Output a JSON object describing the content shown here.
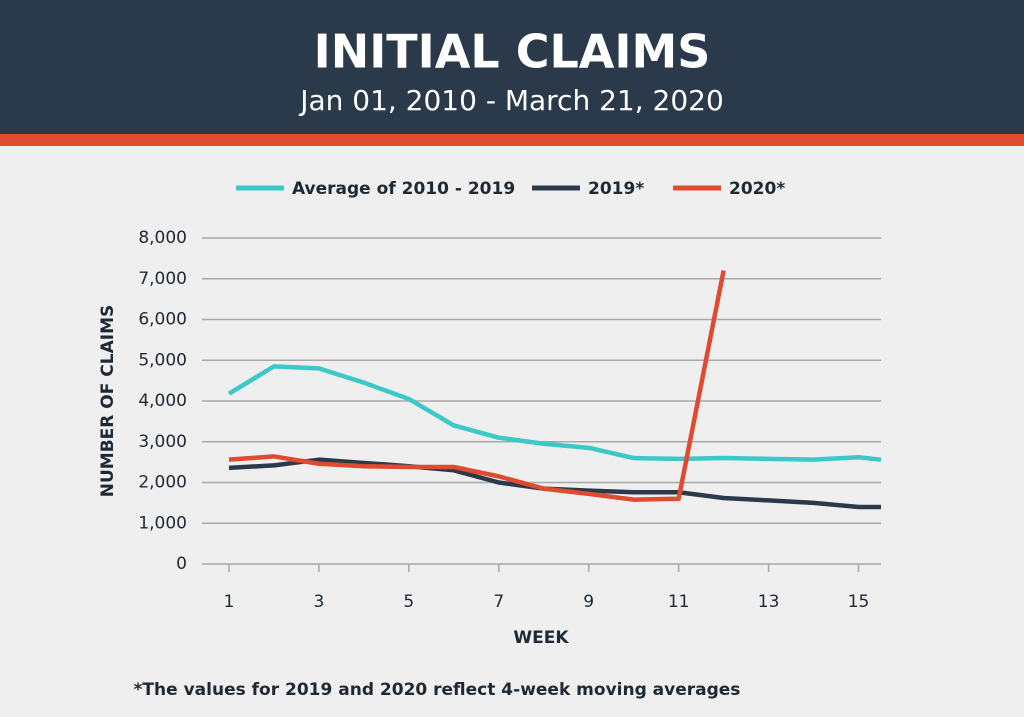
{
  "chart_data": {
    "type": "line",
    "title": "INITIAL CLAIMS",
    "subtitle": "Jan 01, 2010 - March 21, 2020",
    "x_label": "WEEK",
    "y_label": "NUMBER OF CLAIMS",
    "footnote": "*The values for 2019 and 2020 reflect 4-week moving averages",
    "x": [
      1,
      2,
      3,
      4,
      5,
      6,
      7,
      8,
      9,
      10,
      11,
      12,
      13,
      14,
      15,
      15.5
    ],
    "series": [
      {
        "name": "Average of 2010 - 2019",
        "color": "#3cc8c8",
        "values": [
          4180,
          4850,
          4800,
          4450,
          4050,
          3400,
          3100,
          2950,
          2850,
          2600,
          2580,
          2600,
          2580,
          2560,
          2620,
          2560
        ]
      },
      {
        "name": "2019*",
        "color": "#2b3a4a",
        "values": [
          2360,
          2420,
          2560,
          2480,
          2400,
          2300,
          2000,
          1850,
          1800,
          1760,
          1760,
          1620,
          1560,
          1500,
          1400,
          1400
        ]
      },
      {
        "name": "2020*",
        "color": "#e04a2f",
        "values": [
          2560,
          2640,
          2460,
          2400,
          2380,
          2380,
          2150,
          1850,
          1720,
          1580,
          1600,
          7200,
          null,
          null,
          null,
          null
        ]
      }
    ],
    "xlim": [
      0.4,
      15.5
    ],
    "xticks": [
      1,
      3,
      5,
      7,
      9,
      11,
      13,
      15
    ],
    "ylim": [
      0,
      8000
    ],
    "yticks": [
      0,
      {
        "value": 1000,
        "label": "1,000"
      },
      {
        "value": 2000,
        "label": "2,000"
      },
      {
        "value": 3000,
        "label": "3,000"
      },
      {
        "value": 4000,
        "label": "4,000"
      },
      {
        "value": 5000,
        "label": "5,000"
      },
      {
        "value": 6000,
        "label": "6,000"
      },
      {
        "value": 7000,
        "label": "7,000"
      },
      {
        "value": 8000,
        "label": "8,000"
      }
    ],
    "grid": true
  }
}
